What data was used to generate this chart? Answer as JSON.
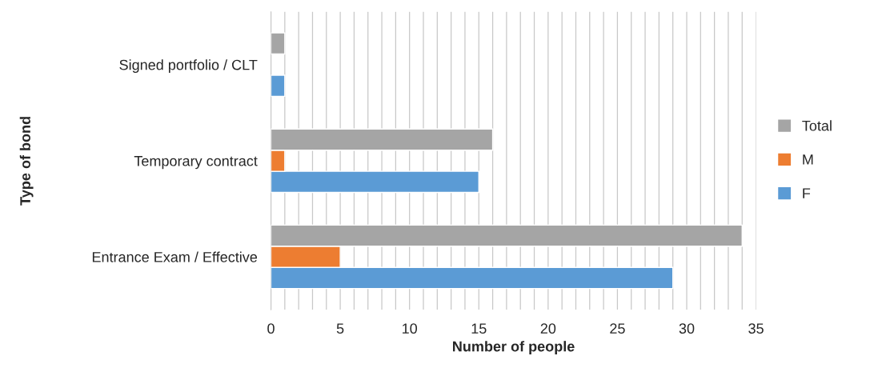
{
  "chart_data": {
    "type": "bar",
    "orientation": "horizontal",
    "xlabel": "Number of people",
    "ylabel": "Type of bond",
    "categories": [
      "Signed portfolio / CLT",
      "Temporary contract",
      "Entrance Exam / Effective"
    ],
    "series": [
      {
        "name": "F",
        "color": "#5b9bd5",
        "values": [
          1,
          15,
          29
        ]
      },
      {
        "name": "M",
        "color": "#ed7d31",
        "values": [
          null,
          1,
          5
        ]
      },
      {
        "name": "Total",
        "color": "#a5a5a5",
        "values": [
          1,
          16,
          34
        ]
      }
    ],
    "xlim": [
      0,
      35
    ],
    "xticks": [
      0,
      {
        "value": 1,
        "label": null
      },
      {
        "value": 2,
        "label": null
      },
      {
        "value": 3,
        "label": null
      },
      {
        "value": 4,
        "label": null
      },
      5,
      {
        "value": 6,
        "label": null
      },
      {
        "value": 7,
        "label": null
      },
      {
        "value": 8,
        "label": null
      },
      {
        "value": 9,
        "label": null
      },
      10,
      {
        "value": 11,
        "label": null
      },
      {
        "value": 12,
        "label": null
      },
      {
        "value": 13,
        "label": null
      },
      {
        "value": 14,
        "label": null
      },
      15,
      {
        "value": 16,
        "label": null
      },
      {
        "value": 17,
        "label": null
      },
      {
        "value": 18,
        "label": null
      },
      {
        "value": 19,
        "label": null
      },
      20,
      {
        "value": 21,
        "label": null
      },
      {
        "value": 22,
        "label": null
      },
      {
        "value": 23,
        "label": null
      },
      {
        "value": 24,
        "label": null
      },
      25,
      {
        "value": 26,
        "label": null
      },
      {
        "value": 27,
        "label": null
      },
      {
        "value": 28,
        "label": null
      },
      {
        "value": 29,
        "label": null
      },
      30,
      {
        "value": 31,
        "label": null
      },
      {
        "value": 32,
        "label": null
      },
      {
        "value": 33,
        "label": null
      },
      {
        "value": 34,
        "label": null
      },
      35
    ],
    "grid": "x",
    "legend": "right"
  }
}
